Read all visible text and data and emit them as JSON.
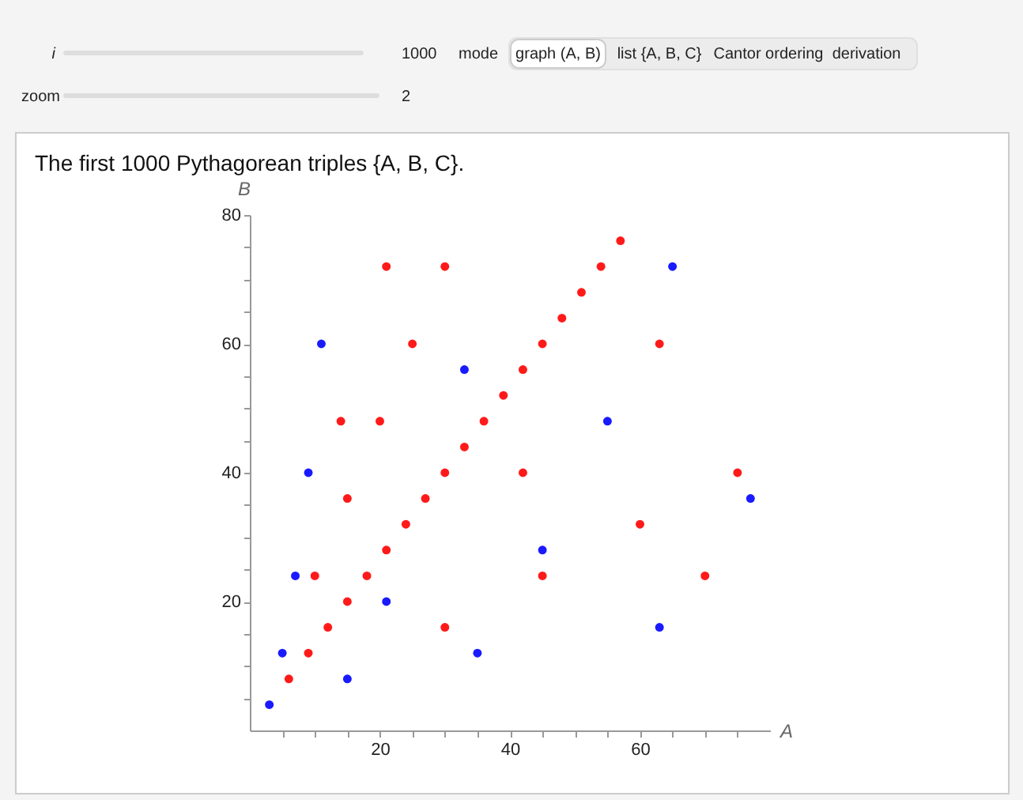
{
  "chart_data": {
    "type": "scatter",
    "title": "The first 1000 Pythagorean triples {A, B, C}.",
    "xlabel": "A",
    "ylabel": "B",
    "annotations": [
      "i",
      "1000",
      "mode",
      "graph (A, B)",
      "list {A, B, C}",
      "Cantor ordering",
      "derivation",
      "zoom",
      "2"
    ],
    "series": [
      {
        "color": "#1a1aff",
        "x": [
          3,
          5,
          15,
          7,
          9,
          11,
          21,
          33,
          35,
          45,
          55,
          63,
          65,
          77
        ],
        "values": [
          4,
          12,
          8,
          24,
          40,
          60,
          20,
          56,
          12,
          28,
          48,
          16,
          72,
          36
        ]
      },
      {
        "color": "#ff1a1a",
        "x": [
          6,
          9,
          12,
          15,
          18,
          21,
          24,
          27,
          30,
          33,
          36,
          39,
          42,
          45,
          48,
          51,
          54,
          57,
          10,
          15,
          20,
          25,
          30,
          14,
          21,
          30,
          45,
          60,
          75,
          42,
          63,
          70
        ],
        "values": [
          8,
          12,
          16,
          20,
          24,
          28,
          32,
          36,
          40,
          44,
          48,
          52,
          56,
          60,
          64,
          68,
          72,
          76,
          24,
          36,
          48,
          60,
          72,
          48,
          72,
          16,
          24,
          32,
          40,
          40,
          60,
          24
        ]
      }
    ],
    "xlim": [
      0,
      80
    ],
    "ylim": [
      0,
      80
    ],
    "xticks": [
      {
        "value": 5,
        "label": null
      },
      {
        "value": 10,
        "label": null
      },
      {
        "value": 15,
        "label": null
      },
      20,
      {
        "value": 25,
        "label": null
      },
      {
        "value": 30,
        "label": null
      },
      {
        "value": 35,
        "label": null
      },
      40,
      {
        "value": 45,
        "label": null
      },
      {
        "value": 50,
        "label": null
      },
      {
        "value": 55,
        "label": null
      },
      60,
      {
        "value": 65,
        "label": null
      },
      {
        "value": 70,
        "label": null
      },
      {
        "value": 75,
        "label": null
      }
    ],
    "yticks": [
      {
        "value": 5,
        "label": null
      },
      {
        "value": 10,
        "label": null
      },
      {
        "value": 15,
        "label": null
      },
      20,
      {
        "value": 25,
        "label": null
      },
      {
        "value": 30,
        "label": null
      },
      {
        "value": 35,
        "label": null
      },
      40,
      {
        "value": 45,
        "label": null
      },
      {
        "value": 50,
        "label": null
      },
      {
        "value": 55,
        "label": null
      },
      60,
      {
        "value": 65,
        "label": null
      },
      {
        "value": 70,
        "label": null
      },
      {
        "value": 75,
        "label": null
      },
      80
    ],
    "marker": "circle",
    "grid": false,
    "legend": false
  }
}
